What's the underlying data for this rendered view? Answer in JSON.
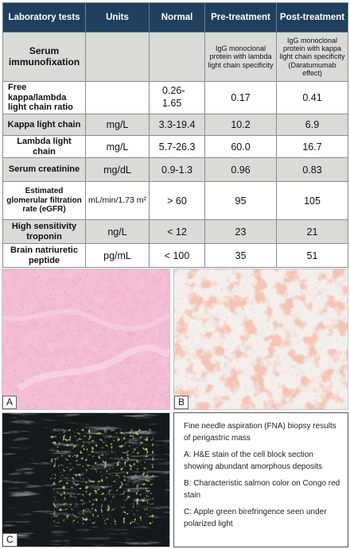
{
  "table": {
    "headers": [
      "Laboratory tests",
      "Units",
      "Normal",
      "Pre-treatment",
      "Post-treatment"
    ],
    "rows": [
      {
        "test": "Serum immunofixation",
        "units": "",
        "normal": "",
        "pre": "IgG monoclonal protein with lambda light chain specificity",
        "post": "IgG monoclonal protein with kappa light chain specificity (Daratumumab effect)"
      },
      {
        "test": "Free kappa/lambda light chain ratio",
        "units": "",
        "normal": "0.26-1.65",
        "pre": "0.17",
        "post": "0.41"
      },
      {
        "test": "Kappa light chain",
        "units": "mg/L",
        "normal": "3.3-19.4",
        "pre": "10.2",
        "post": "6.9"
      },
      {
        "test": "Lambda light chain",
        "units": "mg/L",
        "normal": "5.7-26.3",
        "pre": "60.0",
        "post": "16.7"
      },
      {
        "test": "Serum creatinine",
        "units": "mg/dL",
        "normal": "0.9-1.3",
        "pre": "0.96",
        "post": "0.83"
      },
      {
        "test": "Estimated glomerular filtration rate (eGFR)",
        "units": "mL/min/1.73 m²",
        "normal": "> 60",
        "pre": "95",
        "post": "105"
      },
      {
        "test": "High sensitivity troponin",
        "units": "ng/L",
        "normal": "< 12",
        "pre": "23",
        "post": "21"
      },
      {
        "test": "Brain natriuretic peptide",
        "units": "pg/mL",
        "normal": "< 100",
        "pre": "35",
        "post": "51"
      }
    ]
  },
  "figure": {
    "panel_labels": {
      "a": "A",
      "b": "B",
      "c": "C"
    },
    "caption": {
      "title": "Fine needle aspiration (FNA) biopsy results of perigastric mass",
      "items": [
        "A: H&E stain of the cell block section showing abundant amorphous deposits",
        "B: Characteristic salmon color on Congo red stain",
        "C: Apple green birefringence seen under polarized light"
      ]
    }
  },
  "colors": {
    "header_bg": "#1f3f5f",
    "shade_row": "#d8dbd6",
    "he_stain": "#e98fb0",
    "congo_red": "#e9a38c",
    "polarized_bg": "#141a1c",
    "birefringence": "#a6b83a"
  }
}
